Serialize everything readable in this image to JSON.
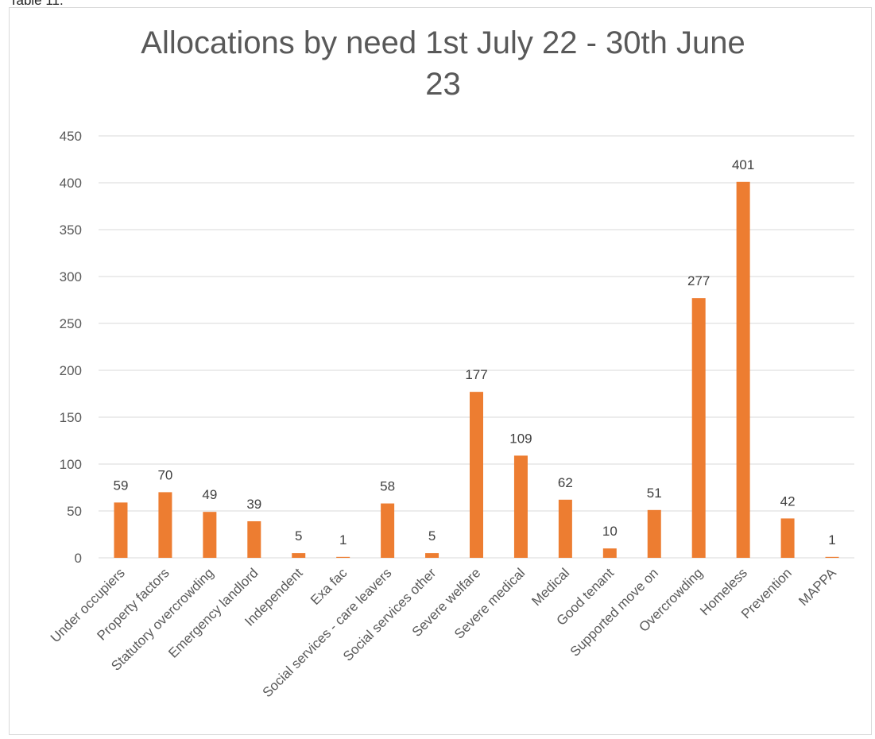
{
  "caption": "Table 11.",
  "chart_data": {
    "type": "bar",
    "title_lines": [
      "Allocations by need 1st July 22 - 30th June",
      "23"
    ],
    "categories": [
      "Under occupiers",
      "Property factors",
      "Statutory overcrowding",
      "Emergency landlord",
      "Independent",
      "Exa fac",
      "Social services - care leavers",
      "Social services other",
      "Severe welfare",
      "Severe medical",
      "Medical",
      "Good tenant",
      "Supported move on",
      "Overcrowding",
      "Homeless",
      "Prevention",
      "MAPPA"
    ],
    "values": [
      59,
      70,
      49,
      39,
      5,
      1,
      58,
      5,
      177,
      109,
      62,
      10,
      51,
      277,
      401,
      42,
      1
    ],
    "ylim": [
      0,
      450
    ],
    "yticks": [
      0,
      50,
      100,
      150,
      200,
      250,
      300,
      350,
      400,
      450
    ],
    "grid": true,
    "legend": "none",
    "bar_color": "#ED7D31",
    "grid_color": "#d9d9d9"
  }
}
